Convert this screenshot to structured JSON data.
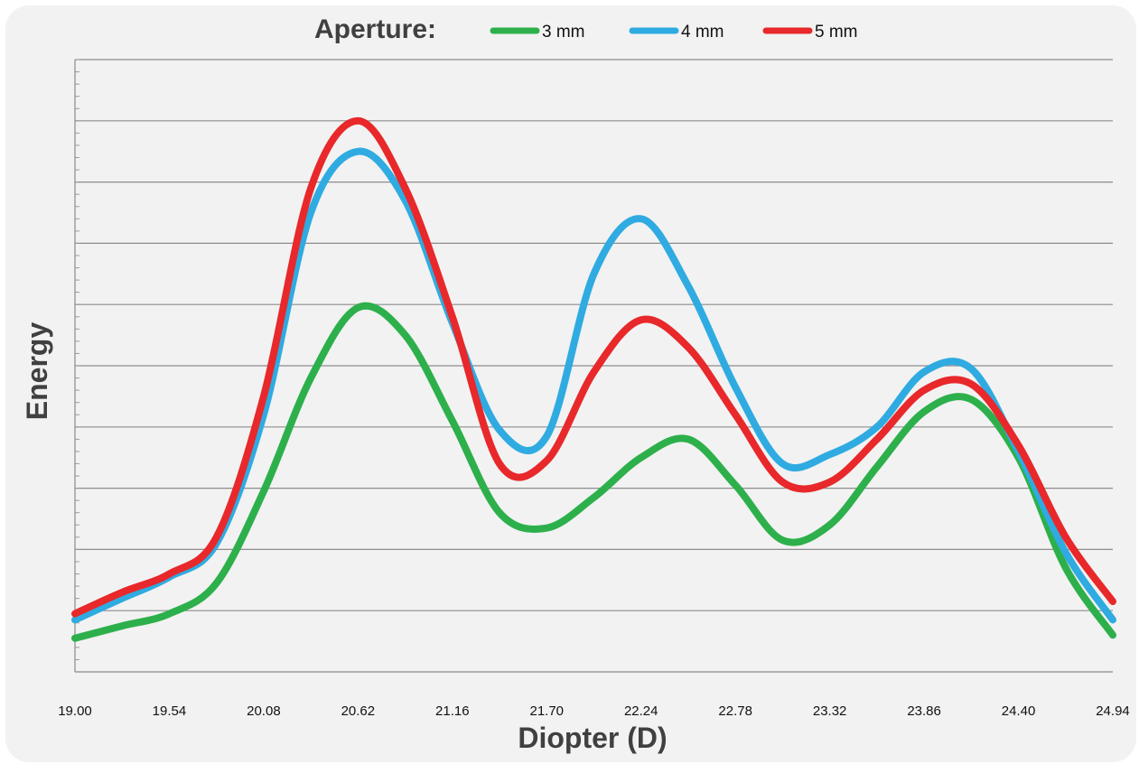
{
  "chart_data": {
    "type": "line",
    "legend_title": "Aperture:",
    "legend_position": "top",
    "xlabel": "Diopter (D)",
    "ylabel": "Energy",
    "x_ticks": [
      "19.00",
      "19.54",
      "20.08",
      "20.62",
      "21.16",
      "21.70",
      "22.24",
      "22.78",
      "23.32",
      "23.86",
      "24.40",
      "24.94"
    ],
    "xlim": [
      19.0,
      24.94
    ],
    "ylim": [
      0,
      10
    ],
    "y_tick_labels_shown": false,
    "grid": "horizontal",
    "x": [
      19.0,
      19.27,
      19.54,
      19.81,
      20.08,
      20.35,
      20.62,
      20.89,
      21.16,
      21.43,
      21.7,
      21.97,
      22.24,
      22.51,
      22.78,
      23.05,
      23.32,
      23.59,
      23.86,
      24.13,
      24.4,
      24.67,
      24.94
    ],
    "series": [
      {
        "name": "3 mm",
        "color": "#2db04b",
        "values": [
          0.55,
          0.75,
          0.95,
          1.45,
          2.95,
          4.8,
          5.95,
          5.5,
          4.1,
          2.6,
          2.35,
          2.85,
          3.5,
          3.8,
          3.05,
          2.15,
          2.4,
          3.35,
          4.25,
          4.45,
          3.5,
          1.7,
          0.6
        ]
      },
      {
        "name": "4 mm",
        "color": "#2fabe1",
        "values": [
          0.85,
          1.2,
          1.55,
          2.1,
          4.2,
          7.5,
          8.5,
          7.7,
          5.7,
          3.95,
          3.85,
          6.5,
          7.4,
          6.3,
          4.65,
          3.4,
          3.55,
          4.0,
          4.9,
          4.95,
          3.6,
          1.95,
          0.85
        ]
      },
      {
        "name": "5 mm",
        "color": "#e8282a",
        "values": [
          0.95,
          1.3,
          1.6,
          2.2,
          4.5,
          7.9,
          9.0,
          7.9,
          5.8,
          3.4,
          3.45,
          4.9,
          5.75,
          5.3,
          4.2,
          3.1,
          3.1,
          3.8,
          4.6,
          4.7,
          3.7,
          2.2,
          1.15
        ]
      }
    ]
  }
}
